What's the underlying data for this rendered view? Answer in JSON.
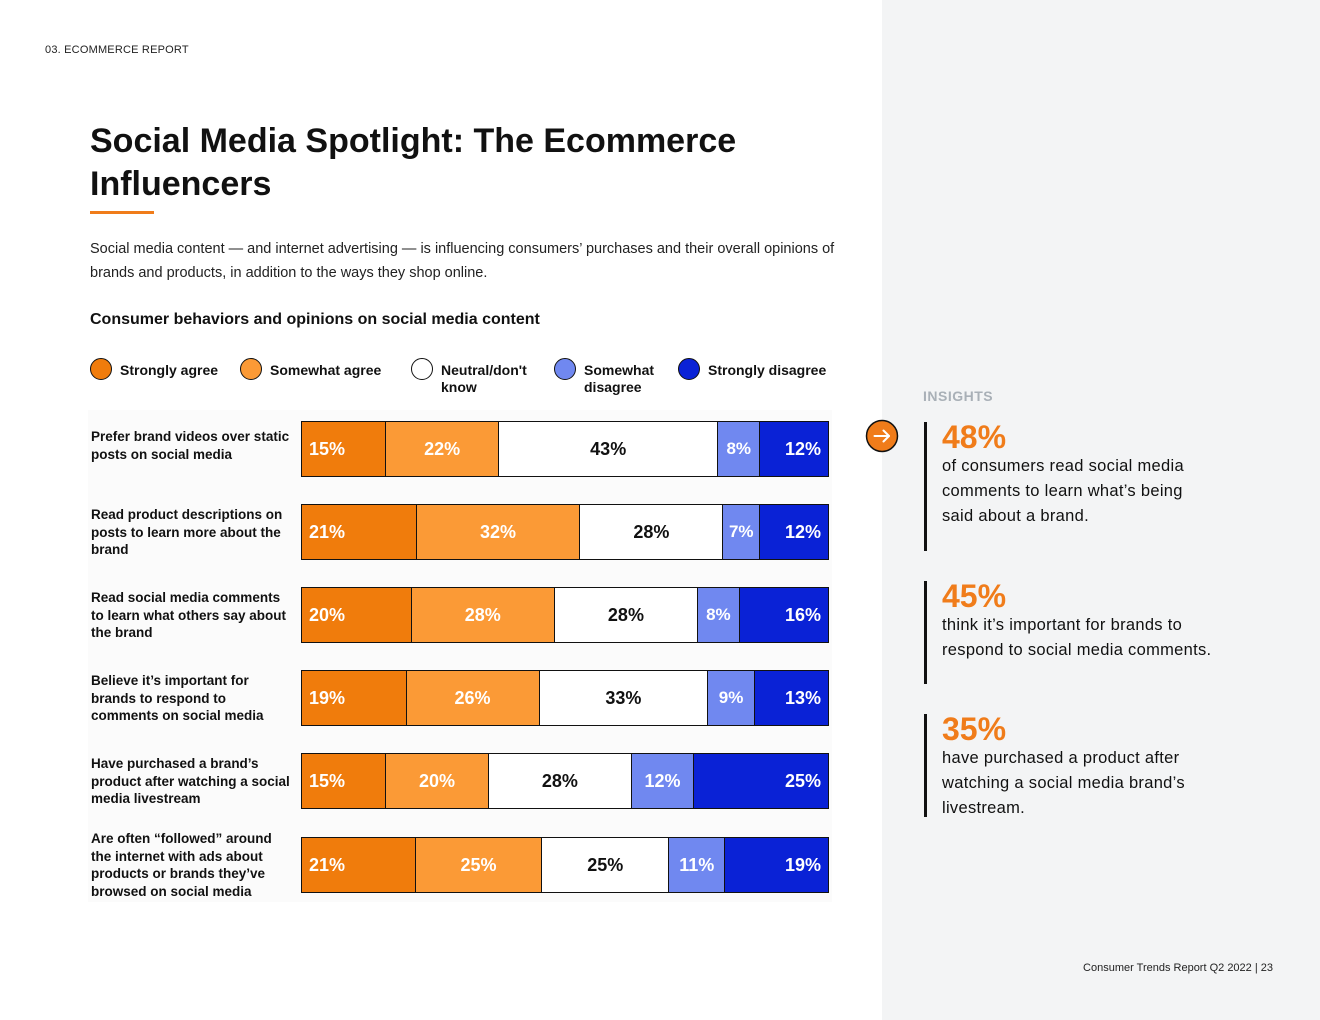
{
  "header": {
    "section_label": "03. ECOMMERCE REPORT"
  },
  "title": "Social Media Spotlight: The Ecommerce Influencers",
  "intro": "Social media content — and internet advertising — is influencing consumers’ purchases and their overall opinions of brands and products, in addition to the ways they shop online.",
  "colors": {
    "accent": "#f07c1a",
    "sidebar_bg": "#f3f4f5"
  },
  "chart_data": {
    "type": "bar",
    "orientation": "horizontal",
    "stacked": true,
    "percent_stacked": true,
    "title": "Consumer behaviors and opinions on social media content",
    "xlabel": "",
    "ylabel": "",
    "xlim": [
      0,
      100
    ],
    "grid": false,
    "legend_position": "top",
    "categories": [
      "Prefer brand videos over static posts on social media",
      "Read product descriptions on posts to learn more about the brand",
      "Read social media comments to learn what others say about the brand",
      "Believe it’s important for brands to respond to comments on social media",
      "Have purchased a brand’s product after watching a social media livestream",
      "Are often “followed” around the internet with ads about products or brands they’ve browsed on social media"
    ],
    "series": [
      {
        "name": "Strongly agree",
        "color": "#f07c0c",
        "text_color": "#ffffff",
        "values": [
          15,
          21,
          20,
          19,
          15,
          21
        ]
      },
      {
        "name": "Somewhat agree",
        "color": "#fb9a36",
        "text_color": "#ffffff",
        "values": [
          22,
          32,
          28,
          26,
          20,
          25
        ]
      },
      {
        "name": "Neutral/don't know",
        "color": "#ffffff",
        "text_color": "#111111",
        "values": [
          43,
          28,
          28,
          33,
          28,
          25
        ]
      },
      {
        "name": "Somewhat disagree",
        "color": "#7088f0",
        "text_color": "#ffffff",
        "values": [
          8,
          7,
          8,
          9,
          12,
          11
        ]
      },
      {
        "name": "Strongly disagree",
        "color": "#0a22d6",
        "text_color": "#ffffff",
        "values": [
          12,
          12,
          16,
          13,
          25,
          19
        ]
      }
    ]
  },
  "insights": {
    "label": "INSIGHTS",
    "items": [
      {
        "stat": "48%",
        "text": "of consumers read social media comments to learn what’s being said about a brand."
      },
      {
        "stat": "45%",
        "text": "think it’s important for brands to respond to social media comments."
      },
      {
        "stat": "35%",
        "text": "have purchased a product after watching a social media brand’s livestream."
      }
    ]
  },
  "footer": {
    "text": "Consumer Trends Report Q2 2022  |   23"
  }
}
